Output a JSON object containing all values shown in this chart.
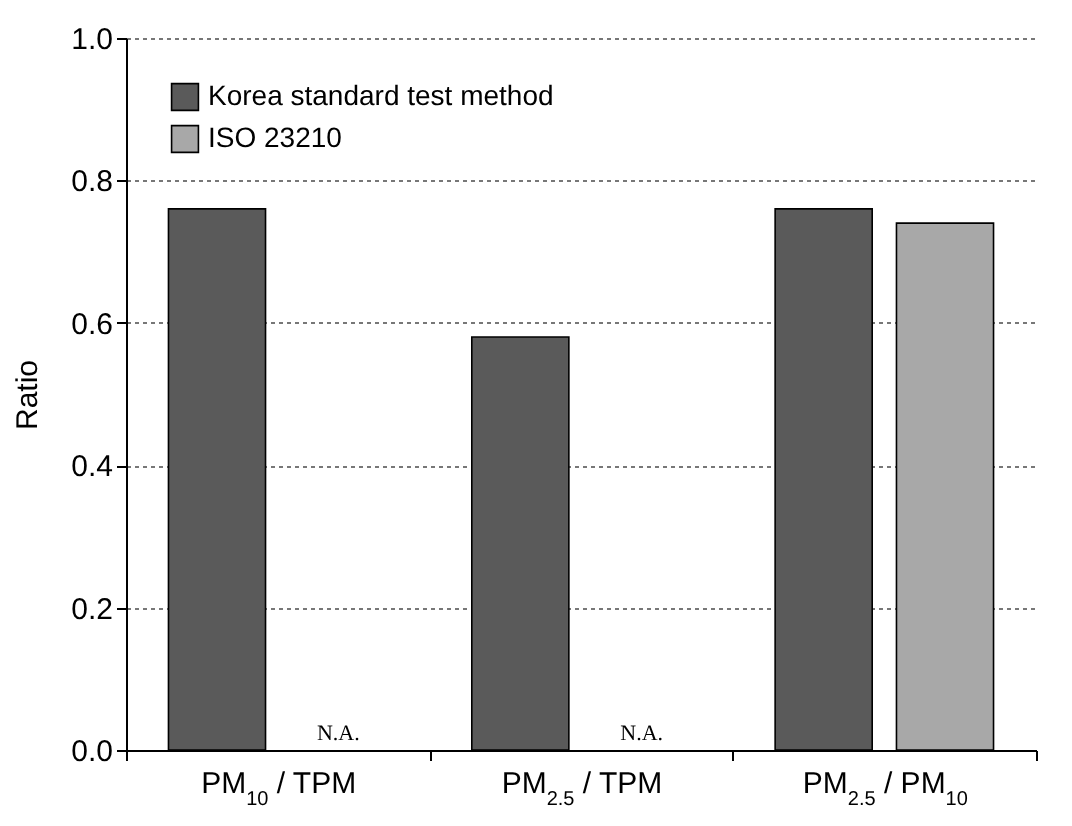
{
  "chart_data": {
    "type": "bar",
    "ylabel": "Ratio",
    "categories": [
      "PM$_{10}$ / TPM",
      "PM$_{2.5}$ / TPM",
      "PM$_{2.5}$ / PM$_{10}$"
    ],
    "series": [
      {
        "name": "Korea standard test method",
        "color": "#5a5a5a",
        "values": [
          0.76,
          0.58,
          0.76
        ]
      },
      {
        "name": "ISO 23210",
        "color": "#a8a8a8",
        "values": [
          null,
          null,
          0.74
        ]
      }
    ],
    "ylim": [
      0,
      1
    ],
    "yticks": [
      {
        "value": 0,
        "label": "0.0"
      },
      {
        "value": 0.2,
        "label": "0.2"
      },
      {
        "value": 0.4,
        "label": "0.4"
      },
      {
        "value": 0.6,
        "label": "0.6"
      },
      {
        "value": 0.8,
        "label": "0.8"
      },
      {
        "value": 1,
        "label": "1.0"
      }
    ],
    "grid": "y",
    "legend": "top left",
    "annotations": [
      "N.A.",
      "N.A."
    ]
  }
}
